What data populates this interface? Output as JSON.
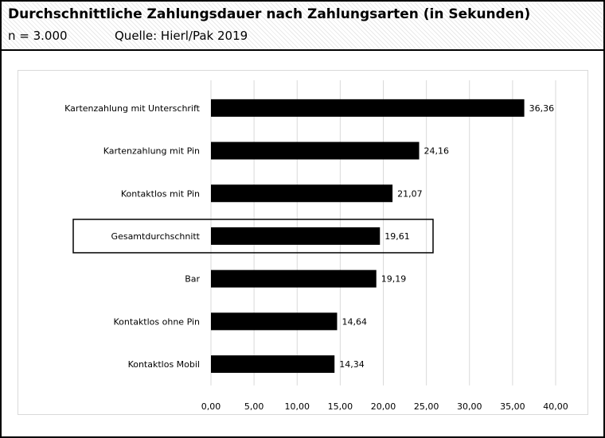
{
  "header": {
    "title": "Durchschnittliche Zahlungsdauer nach Zahlungsarten (in Sekunden)",
    "sample_size": "n = 3.000",
    "source": "Quelle: Hierl/Pak 2019"
  },
  "chart_data": {
    "type": "bar",
    "orientation": "horizontal",
    "title": "Durchschnittliche Zahlungsdauer nach Zahlungsarten (in Sekunden)",
    "xlabel": "",
    "ylabel": "",
    "categories": [
      "Kartenzahlung mit Unterschrift",
      "Kartenzahlung mit Pin",
      "Kontaktlos mit Pin",
      "Gesamtdurchschnitt",
      "Bar",
      "Kontaktlos ohne Pin",
      "Kontaktlos Mobil"
    ],
    "values": [
      36.36,
      24.16,
      21.07,
      19.61,
      19.19,
      14.64,
      14.34
    ],
    "value_labels": [
      "36,36",
      "24,16",
      "21,07",
      "19,61",
      "19,19",
      "14,64",
      "14,34"
    ],
    "highlighted_category": "Gesamtdurchschnitt",
    "xlim": [
      0,
      40
    ],
    "xticks": [
      "0,00",
      "5,00",
      "10,00",
      "15,00",
      "20,00",
      "25,00",
      "30,00",
      "35,00",
      "40,00"
    ],
    "grid": true,
    "legend": "none",
    "bar_color": "#000000",
    "grid_color": "#d9d9d9"
  }
}
